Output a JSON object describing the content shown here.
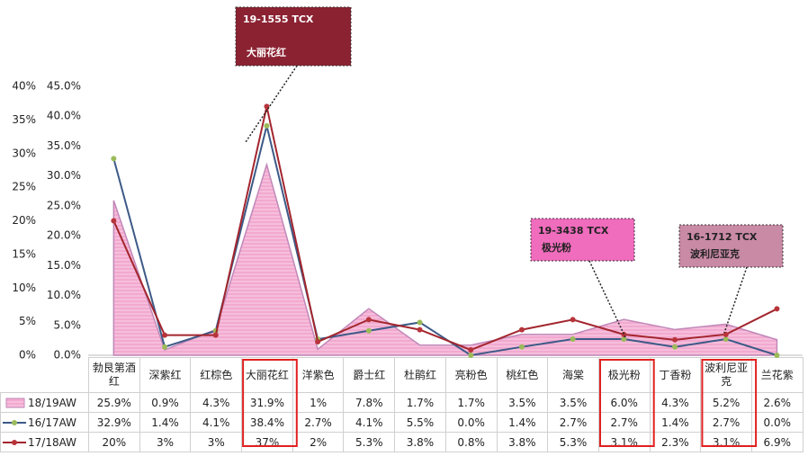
{
  "chart_data": {
    "type": "combo",
    "categories": [
      "勃艮第酒红",
      "深紫红",
      "红棕色",
      "大丽花红",
      "洋紫色",
      "爵士红",
      "杜鹃红",
      "亮粉色",
      "桃红色",
      "海棠",
      "极光粉",
      "丁香粉",
      "波利尼亚克",
      "兰花紫"
    ],
    "ylim": [
      0,
      45
    ],
    "yticks": [
      {
        "value": 0,
        "label": "0.0%"
      },
      {
        "value": 5,
        "label": "5.0%"
      },
      {
        "value": 10,
        "label": "10.0%"
      },
      {
        "value": 15,
        "label": "15.0%"
      },
      {
        "value": 20,
        "label": "20.0%"
      },
      {
        "value": 25,
        "label": "25.0%"
      },
      {
        "value": 30,
        "label": "30.0%"
      },
      {
        "value": 35,
        "label": "35.0%"
      },
      {
        "value": 40,
        "label": "40.0%"
      },
      {
        "value": 45,
        "label": "45.0%"
      }
    ],
    "y2lim": [
      0,
      40
    ],
    "y2ticks": [
      {
        "value": 0,
        "label": "0%"
      },
      {
        "value": 5,
        "label": "5%"
      },
      {
        "value": 10,
        "label": "10%"
      },
      {
        "value": 15,
        "label": "15%"
      },
      {
        "value": 20,
        "label": "20%"
      },
      {
        "value": 25,
        "label": "25%"
      },
      {
        "value": 30,
        "label": "30%"
      },
      {
        "value": 35,
        "label": "35%"
      },
      {
        "value": 40,
        "label": "40%"
      }
    ],
    "series": [
      {
        "name": "18/19AW",
        "kind": "area",
        "color": "#f2a9d0",
        "values": [
          25.9,
          0.9,
          4.3,
          31.9,
          1,
          7.8,
          1.7,
          1.7,
          3.5,
          3.5,
          6.0,
          4.3,
          5.2,
          2.6
        ],
        "value_labels": [
          "25.9%",
          "0.9%",
          "4.3%",
          "31.9%",
          "1%",
          "7.8%",
          "1.7%",
          "1.7%",
          "3.5%",
          "3.5%",
          "6.0%",
          "4.3%",
          "5.2%",
          "2.6%"
        ]
      },
      {
        "name": "16/17AW",
        "kind": "line",
        "color": "#3d5a87",
        "marker_color": "#9bbb59",
        "values": [
          32.9,
          1.4,
          4.1,
          38.4,
          2.7,
          4.1,
          5.5,
          0.0,
          1.4,
          2.7,
          2.7,
          1.4,
          2.7,
          0.0
        ],
        "value_labels": [
          "32.9%",
          "1.4%",
          "4.1%",
          "38.4%",
          "2.7%",
          "4.1%",
          "5.5%",
          "0.0%",
          "1.4%",
          "2.7%",
          "2.7%",
          "1.4%",
          "2.7%",
          "0.0%"
        ]
      },
      {
        "name": "17/18AW",
        "kind": "line",
        "axis": "y2",
        "color": "#a3262e",
        "marker_color": "#b8343b",
        "values": [
          20,
          3,
          3,
          37,
          2,
          5.3,
          3.8,
          0.8,
          3.8,
          5.3,
          3.1,
          2.3,
          3.1,
          6.9
        ],
        "value_labels": [
          "20%",
          "3%",
          "3%",
          "37%",
          "2%",
          "5.3%",
          "3.8%",
          "0.8%",
          "3.8%",
          "5.3%",
          "3.1%",
          "2.3%",
          "3.1%",
          "6.9%"
        ]
      }
    ],
    "annotations": [
      {
        "label": "19-1555 TCX",
        "sublabel": "大丽花红",
        "color": "#8b2232",
        "text_color": "#ffffff"
      },
      {
        "label": "19-3438 TCX",
        "sublabel": "极光粉",
        "color": "#f06cbd",
        "text_color": "#222222"
      },
      {
        "label": "16-1712 TCX",
        "sublabel": "波利尼亚克",
        "color": "#c98aa6",
        "text_color": "#222222"
      }
    ]
  }
}
